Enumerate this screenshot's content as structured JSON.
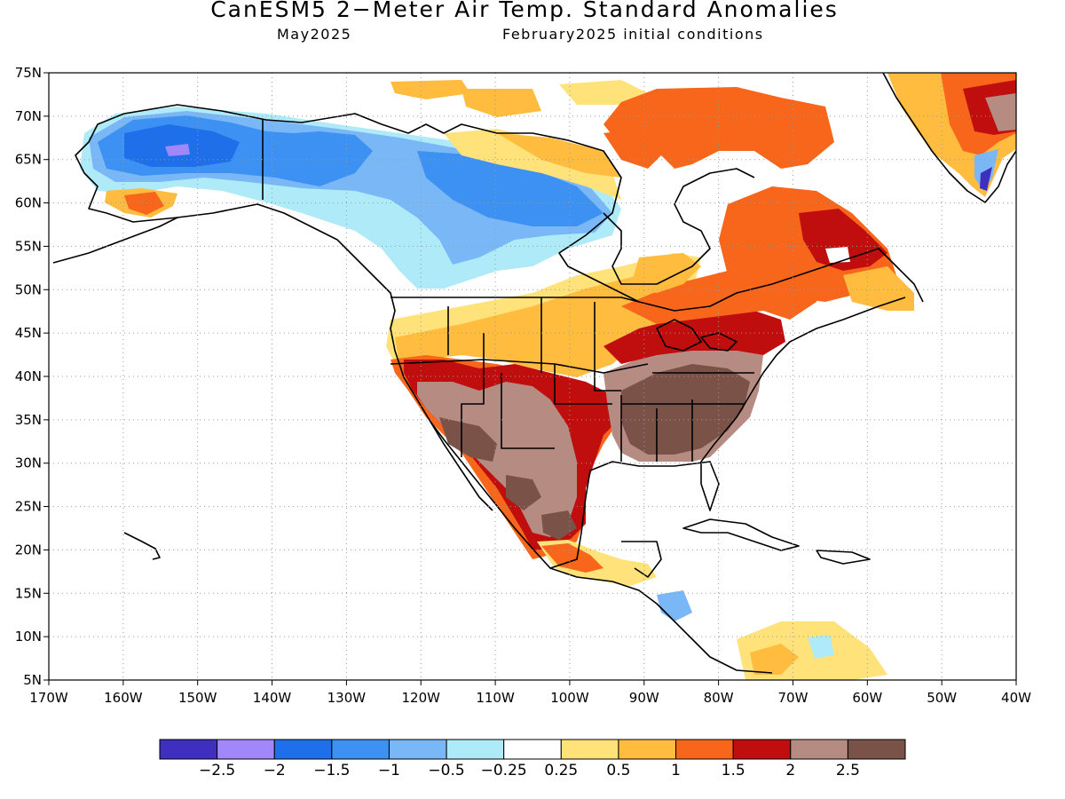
{
  "title": "CanESM5 2−Meter Air Temp. Standard Anomalies",
  "valid_month": "May2025",
  "initial_conditions": "February2025 initial conditions",
  "lat_ticks": [
    "75N",
    "70N",
    "65N",
    "60N",
    "55N",
    "50N",
    "45N",
    "40N",
    "35N",
    "30N",
    "25N",
    "20N",
    "15N",
    "10N",
    "5N"
  ],
  "lon_ticks": [
    "170W",
    "160W",
    "150W",
    "140W",
    "130W",
    "120W",
    "110W",
    "100W",
    "90W",
    "80W",
    "70W",
    "60W",
    "50W",
    "40W"
  ],
  "colorbar": {
    "colors": [
      "#3f2fbf",
      "#a287fa",
      "#1f6fea",
      "#3d91f2",
      "#79b7f7",
      "#aeeaf7",
      "#ffffff",
      "#ffe37a",
      "#ffbc3f",
      "#f7661a",
      "#c00e0e",
      "#b58b82",
      "#7a5248"
    ],
    "labels": [
      "−2.5",
      "−2",
      "−1.5",
      "−1",
      "−0.5",
      "−0.25",
      "0.25",
      "0.5",
      "1",
      "1.5",
      "2",
      "2.5"
    ]
  },
  "colors": {
    "coast": "#000000",
    "grid": "#9a9a9a"
  }
}
